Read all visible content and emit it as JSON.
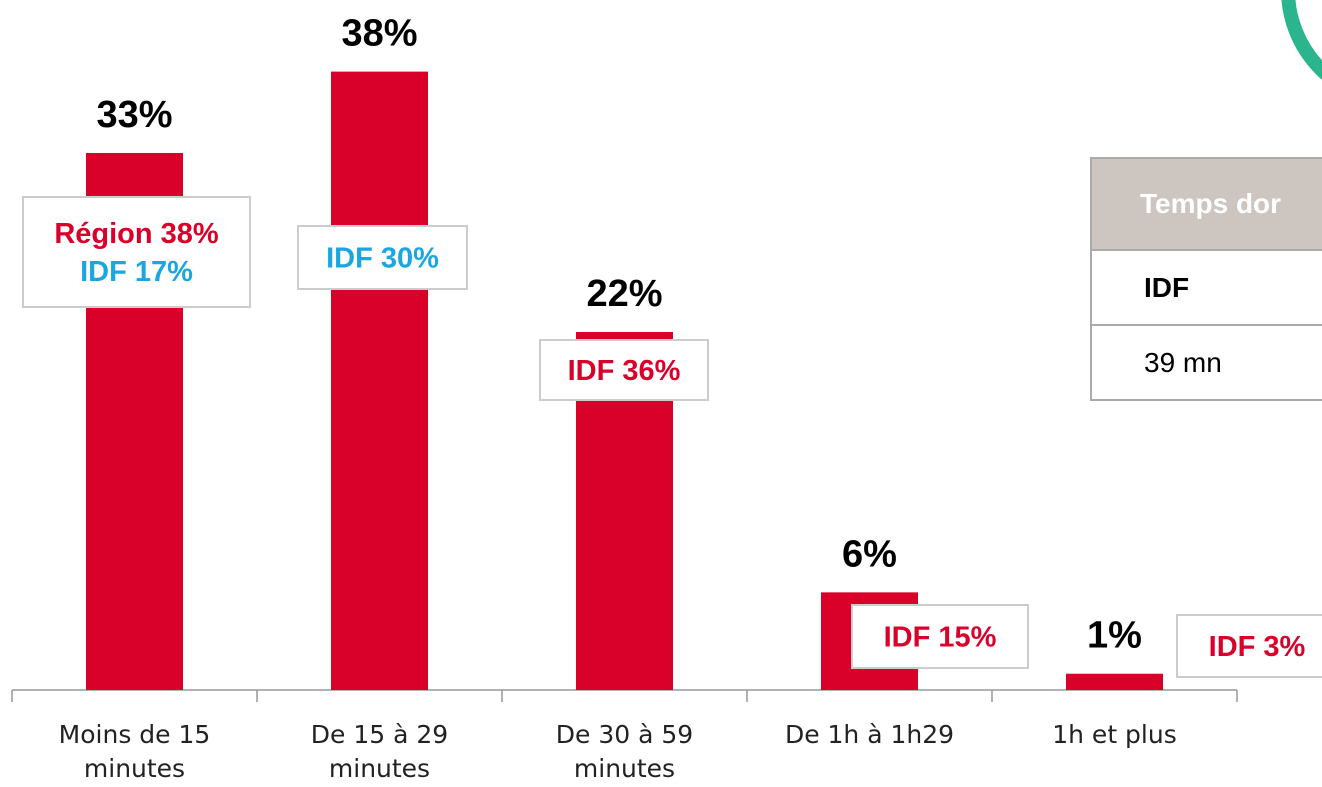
{
  "chart_data": {
    "type": "bar",
    "categories": [
      "Moins de 15 minutes",
      "De 15 à 29 minutes",
      "De 30 à 59 minutes",
      "De 1h à 1h29",
      "1h et plus"
    ],
    "values": [
      33,
      38,
      22,
      6,
      1
    ],
    "value_labels": [
      "33%",
      "38%",
      "22%",
      "6%",
      "1%"
    ],
    "color": "#d9002a",
    "ylim": [
      0,
      42.4
    ],
    "annotations": [
      {
        "lines": [
          {
            "text": "Région 38%",
            "color": "#d9002a"
          },
          {
            "text": "IDF 17%",
            "color": "#1aa6e0"
          }
        ]
      },
      {
        "lines": [
          {
            "text": "IDF 30%",
            "color": "#1aa6e0"
          }
        ]
      },
      {
        "lines": [
          {
            "text": "IDF 36%",
            "color": "#d9002a"
          }
        ]
      },
      {
        "lines": [
          {
            "text": "IDF 15%",
            "color": "#d9002a"
          }
        ]
      },
      {
        "lines": [
          {
            "text": "IDF 3%",
            "color": "#d9002a"
          }
        ]
      }
    ]
  },
  "table": {
    "header": "Temps dor",
    "rows": [
      [
        "IDF"
      ],
      [
        "39 mn"
      ]
    ]
  }
}
